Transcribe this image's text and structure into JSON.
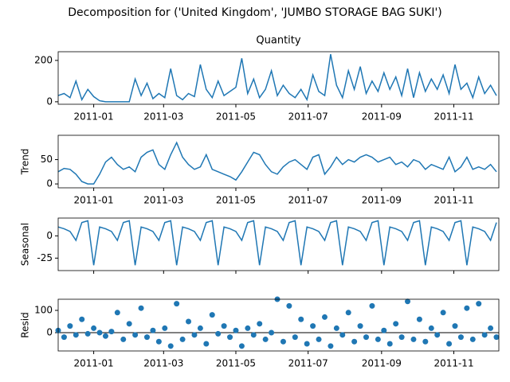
{
  "title": "Decomposition for ('United Kingdom', 'JUMBO STORAGE BAG SUKI')",
  "chart_data": [
    {
      "type": "line",
      "title": "Quantity",
      "color": "#1f77b4",
      "x": [
        1,
        6,
        11,
        16,
        21,
        26,
        31,
        36,
        41,
        46,
        51,
        56,
        61,
        66,
        71,
        76,
        81,
        86,
        91,
        96,
        101,
        106,
        111,
        116,
        121,
        126,
        131,
        136,
        141,
        146,
        151,
        156,
        161,
        166,
        171,
        176,
        181,
        186,
        191,
        196,
        201,
        206,
        211,
        216,
        221,
        226,
        231,
        236,
        241,
        246,
        251,
        256,
        261,
        266,
        271,
        276,
        281,
        286,
        291,
        296,
        301,
        306,
        311,
        316,
        321,
        326,
        331,
        336,
        341,
        346,
        351,
        356,
        361,
        366,
        371
      ],
      "values": [
        30,
        40,
        20,
        100,
        10,
        60,
        25,
        5,
        0,
        0,
        0,
        0,
        0,
        110,
        30,
        90,
        15,
        40,
        20,
        160,
        30,
        10,
        40,
        25,
        180,
        60,
        20,
        100,
        30,
        50,
        70,
        210,
        40,
        110,
        20,
        60,
        150,
        30,
        80,
        40,
        20,
        60,
        10,
        130,
        50,
        30,
        230,
        80,
        20,
        150,
        60,
        170,
        40,
        100,
        50,
        140,
        60,
        120,
        30,
        160,
        20,
        140,
        50,
        110,
        60,
        130,
        40,
        180,
        60,
        90,
        20,
        120,
        40,
        80,
        30
      ],
      "xlim": [
        1,
        373
      ],
      "xticks": [
        {
          "value": 31,
          "label": "2011-01"
        },
        {
          "value": 90,
          "label": "2011-03"
        },
        {
          "value": 151,
          "label": "2011-05"
        },
        {
          "value": 212,
          "label": "2011-07"
        },
        {
          "value": 274,
          "label": "2011-09"
        },
        {
          "value": 335,
          "label": "2011-11"
        }
      ],
      "ylim": [
        -12,
        242
      ],
      "yticks": [
        0,
        200
      ]
    },
    {
      "type": "line",
      "ylabel": "Trend",
      "color": "#1f77b4",
      "x": [
        1,
        6,
        11,
        16,
        21,
        26,
        31,
        36,
        41,
        46,
        51,
        56,
        61,
        66,
        71,
        76,
        81,
        86,
        91,
        96,
        101,
        106,
        111,
        116,
        121,
        126,
        131,
        136,
        141,
        146,
        151,
        156,
        161,
        166,
        171,
        176,
        181,
        186,
        191,
        196,
        201,
        206,
        211,
        216,
        221,
        226,
        231,
        236,
        241,
        246,
        251,
        256,
        261,
        266,
        271,
        276,
        281,
        286,
        291,
        296,
        301,
        306,
        311,
        316,
        321,
        326,
        331,
        336,
        341,
        346,
        351,
        356,
        361,
        366,
        371
      ],
      "values": [
        25,
        32,
        30,
        20,
        5,
        0,
        0,
        20,
        45,
        55,
        40,
        30,
        35,
        25,
        55,
        65,
        70,
        40,
        30,
        60,
        85,
        55,
        40,
        30,
        35,
        60,
        30,
        25,
        20,
        15,
        8,
        25,
        45,
        65,
        60,
        40,
        25,
        20,
        35,
        45,
        50,
        40,
        30,
        55,
        60,
        20,
        35,
        55,
        40,
        50,
        45,
        55,
        60,
        55,
        45,
        50,
        55,
        40,
        45,
        35,
        50,
        45,
        30,
        40,
        35,
        30,
        55,
        25,
        35,
        55,
        30,
        35,
        30,
        40,
        25
      ],
      "xlim": [
        1,
        373
      ],
      "xticks": [
        {
          "value": 31,
          "label": "2011-01"
        },
        {
          "value": 90,
          "label": "2011-03"
        },
        {
          "value": 151,
          "label": "2011-05"
        },
        {
          "value": 212,
          "label": "2011-07"
        },
        {
          "value": 274,
          "label": "2011-09"
        },
        {
          "value": 335,
          "label": "2011-11"
        }
      ],
      "ylim": [
        -8,
        100
      ],
      "yticks": [
        0,
        50
      ]
    },
    {
      "type": "line",
      "ylabel": "Seasonal",
      "color": "#1f77b4",
      "x": [
        1,
        6,
        11,
        16,
        21,
        26,
        31,
        36,
        41,
        46,
        51,
        56,
        61,
        66,
        71,
        76,
        81,
        86,
        91,
        96,
        101,
        106,
        111,
        116,
        121,
        126,
        131,
        136,
        141,
        146,
        151,
        156,
        161,
        166,
        171,
        176,
        181,
        186,
        191,
        196,
        201,
        206,
        211,
        216,
        221,
        226,
        231,
        236,
        241,
        246,
        251,
        256,
        261,
        266,
        271,
        276,
        281,
        286,
        291,
        296,
        301,
        306,
        311,
        316,
        321,
        326,
        331,
        336,
        341,
        346,
        351,
        356,
        361,
        366,
        371
      ],
      "values": [
        10,
        8,
        5,
        -5,
        15,
        17,
        -33,
        10,
        8,
        5,
        -5,
        15,
        17,
        -33,
        10,
        8,
        5,
        -5,
        15,
        17,
        -33,
        10,
        8,
        5,
        -5,
        15,
        17,
        -33,
        10,
        8,
        5,
        -5,
        15,
        17,
        -33,
        10,
        8,
        5,
        -5,
        15,
        17,
        -33,
        10,
        8,
        5,
        -5,
        15,
        17,
        -33,
        10,
        8,
        5,
        -5,
        15,
        17,
        -33,
        10,
        8,
        5,
        -5,
        15,
        17,
        -33,
        10,
        8,
        5,
        -5,
        15,
        17,
        -33,
        10,
        8,
        5,
        -5,
        15
      ],
      "xlim": [
        1,
        373
      ],
      "xticks": [
        31,
        90,
        151,
        212,
        274,
        335
      ],
      "ylim": [
        -39,
        20
      ],
      "yticks": [
        -25,
        0
      ]
    },
    {
      "type": "scatter",
      "ylabel": "Resid",
      "color": "#1f77b4",
      "baseline": 0,
      "x": [
        1,
        6,
        11,
        16,
        21,
        26,
        31,
        36,
        41,
        46,
        51,
        56,
        61,
        66,
        71,
        76,
        81,
        86,
        91,
        96,
        101,
        106,
        111,
        116,
        121,
        126,
        131,
        136,
        141,
        146,
        151,
        156,
        161,
        166,
        171,
        176,
        181,
        186,
        191,
        196,
        201,
        206,
        211,
        216,
        221,
        226,
        231,
        236,
        241,
        246,
        251,
        256,
        261,
        266,
        271,
        276,
        281,
        286,
        291,
        296,
        301,
        306,
        311,
        316,
        321,
        326,
        331,
        336,
        341,
        346,
        351,
        356,
        361,
        366,
        371
      ],
      "values": [
        10,
        -20,
        30,
        -10,
        60,
        -5,
        20,
        0,
        -15,
        5,
        90,
        -30,
        40,
        -10,
        110,
        -20,
        10,
        -40,
        20,
        -60,
        130,
        -30,
        50,
        -10,
        20,
        -50,
        80,
        -5,
        30,
        -20,
        10,
        -60,
        20,
        -10,
        40,
        -30,
        0,
        150,
        -40,
        120,
        -20,
        60,
        -50,
        30,
        -30,
        70,
        -60,
        20,
        -10,
        90,
        -40,
        30,
        -20,
        120,
        -30,
        10,
        -50,
        40,
        -20,
        140,
        -30,
        60,
        -40,
        20,
        -10,
        90,
        -50,
        30,
        -20,
        110,
        -30,
        130,
        -10,
        20,
        -20
      ],
      "xlim": [
        1,
        373
      ],
      "xticks": [
        {
          "value": 31,
          "label": "2011-01"
        },
        {
          "value": 90,
          "label": "2011-03"
        },
        {
          "value": 151,
          "label": "2011-05"
        },
        {
          "value": 212,
          "label": "2011-07"
        },
        {
          "value": 274,
          "label": "2011-09"
        },
        {
          "value": 335,
          "label": "2011-11"
        }
      ],
      "ylim": [
        -82,
        150
      ],
      "yticks": [
        0,
        100
      ]
    }
  ]
}
